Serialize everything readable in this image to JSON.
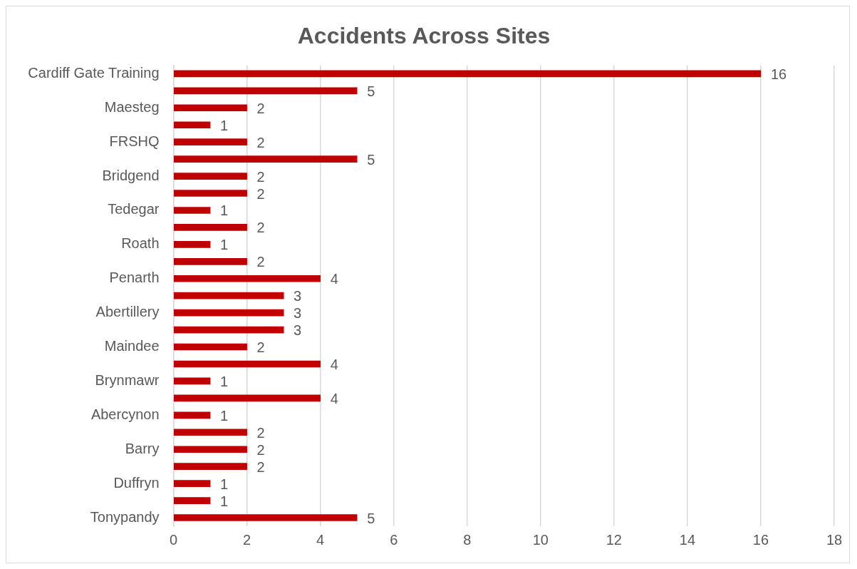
{
  "chart_data": {
    "type": "bar",
    "orientation": "horizontal",
    "title": "Accidents Across Sites",
    "categories": [
      "Cardiff Gate Training",
      null,
      "Maesteg",
      null,
      "FRSHQ",
      null,
      "Bridgend",
      null,
      "Tedegar",
      null,
      "Roath",
      null,
      "Penarth",
      null,
      "Abertillery",
      null,
      "Maindee",
      null,
      "Brynmawr",
      null,
      "Abercynon",
      null,
      "Barry",
      null,
      "Duffryn",
      null,
      "Tonypandy"
    ],
    "values": [
      16,
      5,
      2,
      1,
      2,
      5,
      2,
      2,
      1,
      2,
      1,
      2,
      4,
      3,
      3,
      3,
      2,
      4,
      1,
      4,
      1,
      2,
      2,
      2,
      1,
      1,
      5
    ],
    "color": "#c00000",
    "xlim": [
      0,
      18
    ],
    "xticks": [
      0,
      2,
      4,
      6,
      8,
      10,
      12,
      14,
      16,
      18
    ],
    "grid": "x",
    "data_labels": true,
    "legend": false
  }
}
